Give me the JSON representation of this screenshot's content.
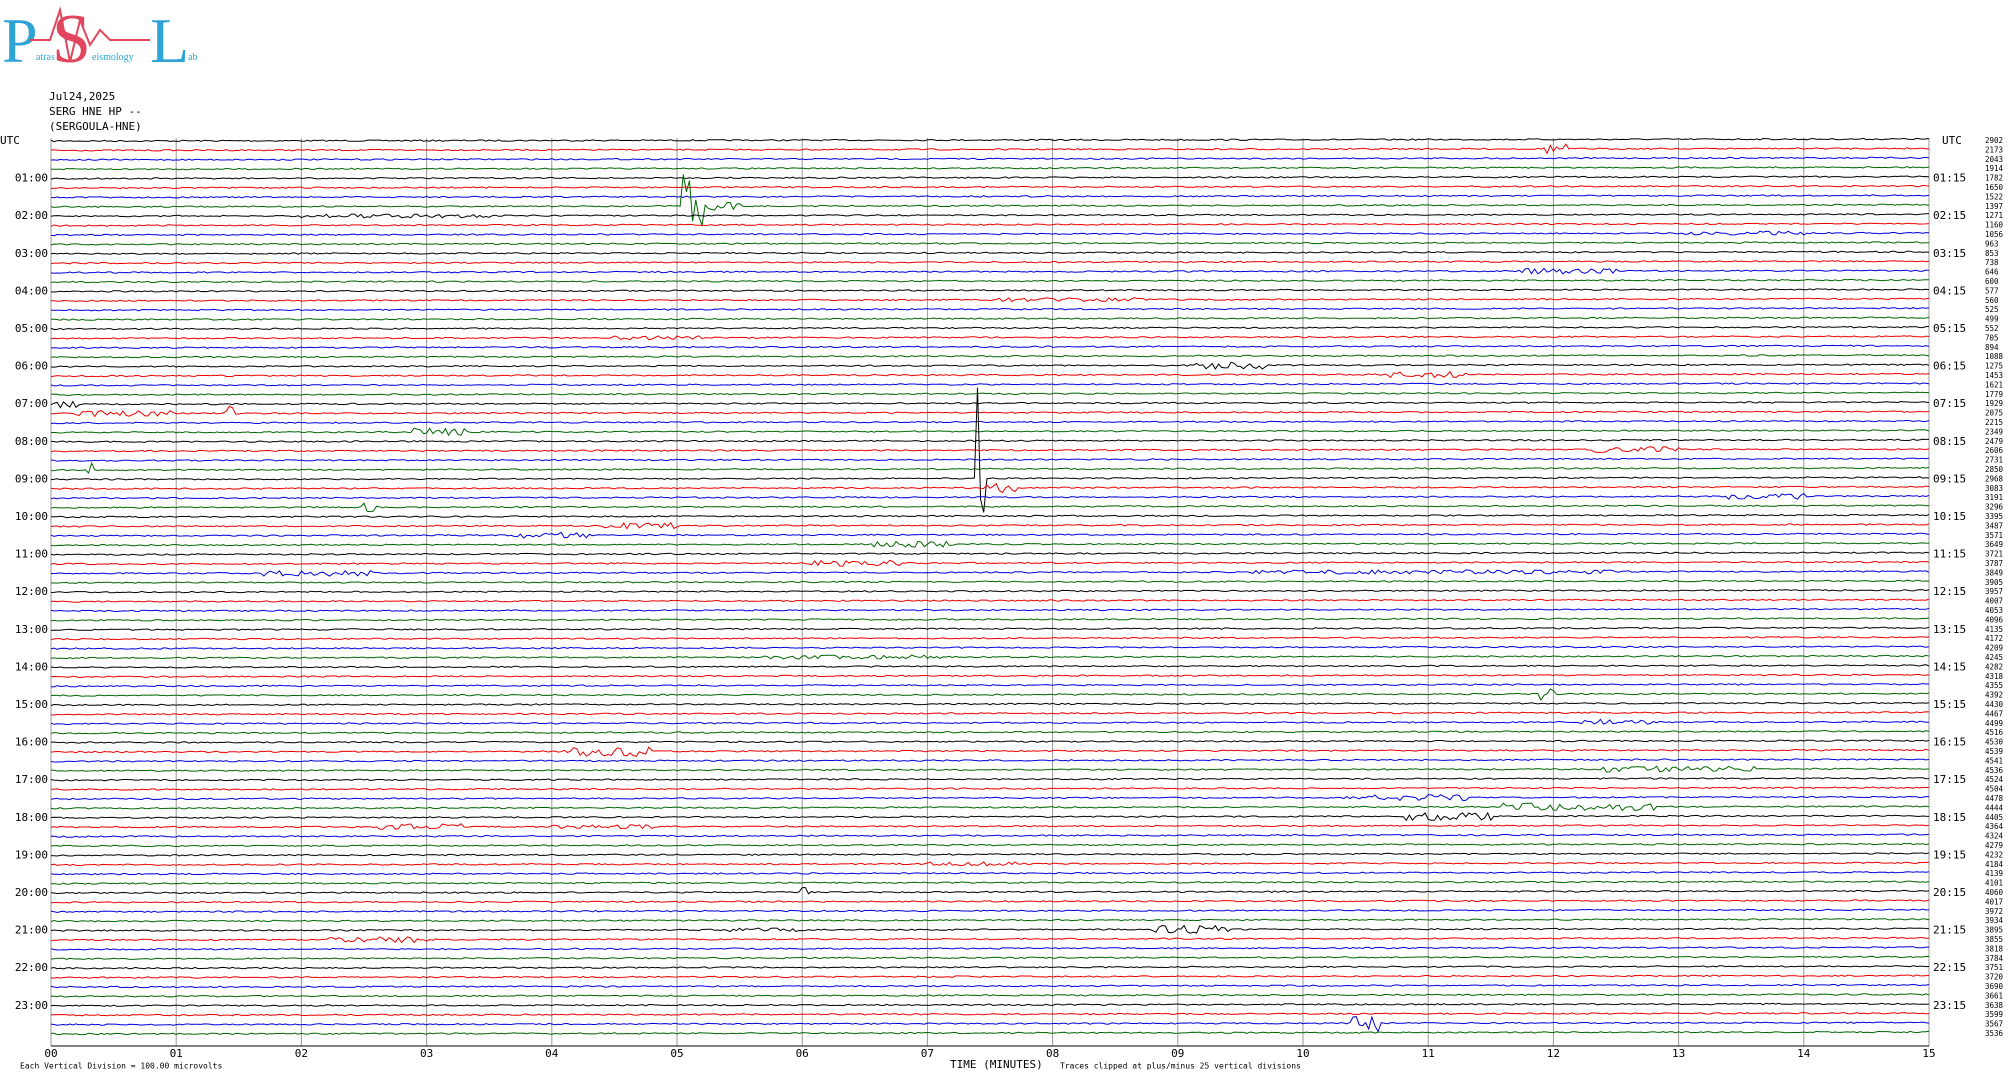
{
  "logo": {
    "letters": [
      "P",
      "S",
      "L"
    ],
    "words": [
      "atras",
      "eismology",
      "ab"
    ]
  },
  "header": {
    "date": "Jul24,2025",
    "station": "SERG HNE HP --",
    "site": "(SERGOULA-HNE)"
  },
  "left_axis": {
    "title": "UTC",
    "labels": [
      "01:00",
      "02:00",
      "03:00",
      "04:00",
      "05:00",
      "06:00",
      "07:00",
      "08:00",
      "09:00",
      "10:00",
      "11:00",
      "12:00",
      "13:00",
      "14:00",
      "15:00",
      "16:00",
      "17:00",
      "18:00",
      "19:00",
      "20:00",
      "21:00",
      "22:00",
      "23:00"
    ]
  },
  "right_axis": {
    "title": "UTC",
    "labels": [
      "01:15",
      "02:15",
      "03:15",
      "04:15",
      "05:15",
      "06:15",
      "07:15",
      "08:15",
      "09:15",
      "10:15",
      "11:15",
      "12:15",
      "13:15",
      "14:15",
      "15:15",
      "16:15",
      "17:15",
      "18:15",
      "19:15",
      "20:15",
      "21:15",
      "22:15",
      "23:15"
    ]
  },
  "trace_offsets": [
    "2902",
    "2173",
    "2043",
    "1914",
    "1782",
    "1650",
    "1522",
    "1397",
    "1271",
    "1160",
    "1056",
    "963",
    "853",
    "738",
    "646",
    "600",
    "577",
    "560",
    "525",
    "499",
    "552",
    "705",
    "894",
    "1088",
    "1275",
    "1453",
    "1621",
    "1779",
    "1929",
    "2075",
    "2215",
    "2349",
    "2479",
    "2606",
    "2731",
    "2850",
    "2968",
    "3083",
    "3191",
    "3296",
    "3395",
    "3487",
    "3571",
    "3649",
    "3721",
    "3787",
    "3849",
    "3905",
    "3957",
    "4007",
    "4053",
    "4096",
    "4135",
    "4172",
    "4209",
    "4245",
    "4282",
    "4318",
    "4355",
    "4392",
    "4430",
    "4467",
    "4499",
    "4516",
    "4530",
    "4539",
    "4541",
    "4536",
    "4524",
    "4504",
    "4478",
    "4444",
    "4405",
    "4364",
    "4324",
    "4279",
    "4232",
    "4184",
    "4139",
    "4101",
    "4060",
    "4017",
    "3972",
    "3934",
    "3895",
    "3855",
    "3818",
    "3784",
    "3751",
    "3720",
    "3690",
    "3661",
    "3638",
    "3599",
    "3567",
    "3536"
  ],
  "x_axis": {
    "title": "TIME (MINUTES)",
    "labels": [
      "00",
      "01",
      "02",
      "03",
      "04",
      "05",
      "06",
      "07",
      "08",
      "09",
      "10",
      "11",
      "12",
      "13",
      "14",
      "15"
    ]
  },
  "footer": {
    "scale_note": "Each Vertical Division =  100.00 microvolts",
    "clip_note": "Traces clipped at plus/minus 25 vertical divisions"
  }
}
